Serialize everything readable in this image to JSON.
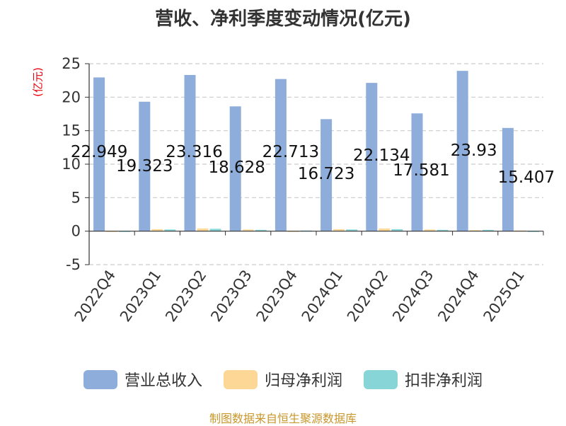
{
  "chart_data": {
    "type": "bar",
    "title": "营收、净利季度变动情况(亿元)",
    "ylabel": "(亿元)",
    "xlabel": "",
    "ylim": [
      -5,
      25
    ],
    "yticks": [
      -5,
      0,
      5,
      10,
      15,
      20,
      25
    ],
    "grid": true,
    "legend_position": "bottom",
    "categories": [
      "2022Q4",
      "2023Q1",
      "2023Q2",
      "2023Q3",
      "2023Q4",
      "2024Q1",
      "2024Q2",
      "2024Q3",
      "2024Q4",
      "2025Q1"
    ],
    "series": [
      {
        "name": "营业总收入",
        "color": "#8eaddb",
        "values": [
          22.949,
          19.323,
          23.316,
          18.628,
          22.713,
          16.723,
          22.134,
          17.581,
          23.93,
          15.407
        ],
        "labels": [
          "22.949",
          "19.323",
          "23.316",
          "18.628",
          "22.713",
          "16.723",
          "22.134",
          "17.581",
          "23.93",
          "15.407"
        ]
      },
      {
        "name": "归母净利润",
        "color": "#fcd796",
        "values": [
          0.05,
          0.3,
          0.4,
          0.25,
          0.05,
          0.3,
          0.4,
          0.25,
          0.15,
          0.1
        ]
      },
      {
        "name": "扣非净利润",
        "color": "#87d5d7",
        "values": [
          0.05,
          0.25,
          0.35,
          0.2,
          0.1,
          0.25,
          0.3,
          0.2,
          0.2,
          0.05
        ]
      }
    ]
  },
  "source": "制图数据来自恒生聚源数据库"
}
